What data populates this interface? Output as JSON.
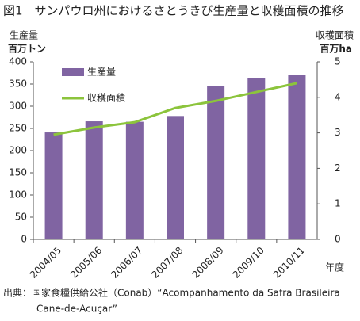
{
  "chart_data": {
    "type": "bar-line",
    "title": "図1　サンパウロ州におけるさとうきび生産量と収穫面積の推移",
    "y_label": [
      "生産量",
      "百万トン"
    ],
    "y2_label": [
      "収穫面積",
      "百万ha"
    ],
    "x_label": "年度",
    "categories": [
      "2004/05",
      "2005/06",
      "2006/07",
      "2007/08",
      "2008/09",
      "2009/10",
      "2010/11"
    ],
    "series": [
      {
        "name": "生産量",
        "type": "bar",
        "color": "#8064a2",
        "values": [
          241,
          266,
          265,
          278,
          346,
          363,
          371
        ]
      },
      {
        "name": "収穫面積",
        "type": "line",
        "axis": "y2",
        "color": "#8cc43c",
        "values": [
          2.95,
          3.15,
          3.3,
          3.7,
          3.9,
          4.15,
          4.4
        ]
      }
    ],
    "ylim": [
      0,
      400
    ],
    "yticks": [
      0,
      50,
      100,
      150,
      200,
      250,
      300,
      350,
      400
    ],
    "y2lim": [
      0,
      5
    ],
    "y2ticks": [
      0,
      1,
      2,
      3,
      4,
      5
    ],
    "grid": false,
    "legend": "upper-left",
    "source": [
      "出典：国家食糧供給公社（Conab）“Acompanhamento da Safra Brasileira",
      "Cane-de-Acuçar”"
    ]
  }
}
